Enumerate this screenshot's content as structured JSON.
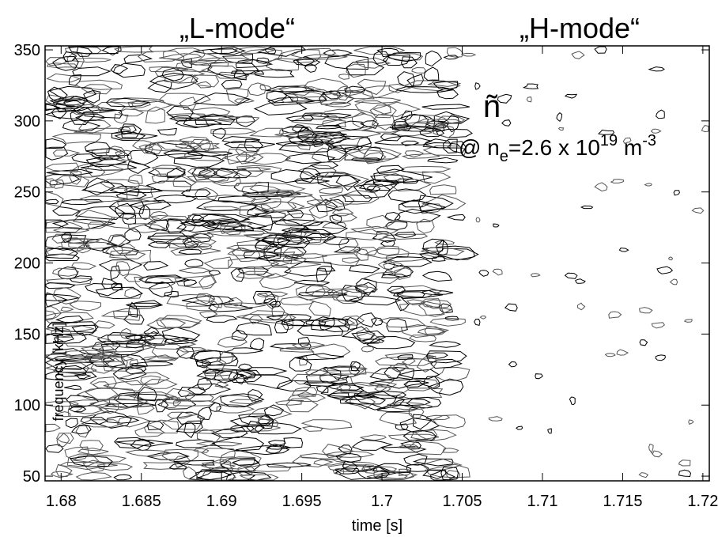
{
  "chart_data": {
    "type": "contour",
    "titles": [
      "„L-mode“",
      "„H-mode“"
    ],
    "x_label": "time  [s]",
    "y_label": "frequency [kHz]",
    "annotation": {
      "symbol": "ñ",
      "prefix": "@ n",
      "sub": "e",
      "middle": "=2.6 x 10",
      "sup1": "19",
      "unit": " m",
      "sup2": "-3"
    },
    "xlim": [
      1.679,
      1.7204
    ],
    "ylim": [
      46.7,
      352.8
    ],
    "xticks": [
      1.68,
      1.685,
      1.69,
      1.695,
      1.7,
      1.705,
      1.71,
      1.715,
      1.72
    ],
    "yticks": [
      50,
      100,
      150,
      200,
      250,
      300,
      350
    ],
    "color": "#000000"
  }
}
